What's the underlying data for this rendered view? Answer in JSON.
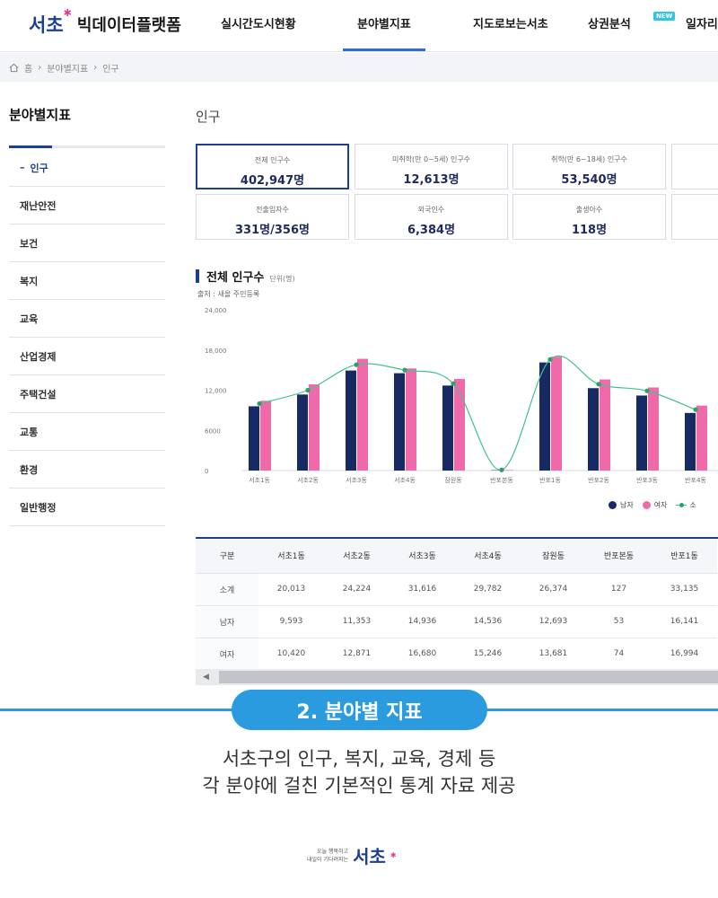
{
  "header": {
    "logo": "서초",
    "logo_sub": "빅데이터플랫폼",
    "nav": [
      {
        "label": "실시간도시현황"
      },
      {
        "label": "분야별지표"
      },
      {
        "label": "지도로보는서초"
      },
      {
        "label": "상권분석"
      },
      {
        "label": "일자리"
      }
    ],
    "new_badge": "NEW"
  },
  "breadcrumb": [
    "홈",
    "분야별지표",
    "인구"
  ],
  "sidebar": {
    "title": "분야별지표",
    "items": [
      {
        "label": "인구"
      },
      {
        "label": "재난안전"
      },
      {
        "label": "보건"
      },
      {
        "label": "복지"
      },
      {
        "label": "교육"
      },
      {
        "label": "산업경제"
      },
      {
        "label": "주택건설"
      },
      {
        "label": "교통"
      },
      {
        "label": "환경"
      },
      {
        "label": "일반행정"
      }
    ]
  },
  "main": {
    "title": "인구",
    "cards": [
      {
        "label": "전체 인구수",
        "value": "402,947명"
      },
      {
        "label": "미취학(만 0~5세) 인구수",
        "value": "12,613명"
      },
      {
        "label": "취학(만 6~18세) 인구수",
        "value": "53,540명"
      },
      {
        "label": "전출입자수",
        "value": "331명/356명"
      },
      {
        "label": "외국인수",
        "value": "6,384명"
      },
      {
        "label": "출생아수",
        "value": "118명"
      }
    ]
  },
  "chart": {
    "title": "전체 인구수",
    "unit": "단위(명)",
    "source": "출처 : 새올 주민등록",
    "legend": [
      "남자",
      "여자",
      "소"
    ],
    "colors": {
      "male": "#182a63",
      "female": "#f06aaa",
      "line": "#3fc38d",
      "line_dot": "#2e9f66"
    }
  },
  "chart_data": {
    "type": "bar",
    "categories": [
      "서초1동",
      "서초2동",
      "서초3동",
      "서초4동",
      "잠원동",
      "반포본동",
      "반포1동",
      "반포2동",
      "반포3동",
      "반포4동"
    ],
    "series": [
      {
        "name": "남자",
        "type": "bar",
        "values": [
          9593,
          11353,
          14936,
          14536,
          12693,
          53,
          16141,
          12300,
          11200,
          8600
        ]
      },
      {
        "name": "여자",
        "type": "bar",
        "values": [
          10420,
          12871,
          16680,
          15246,
          13681,
          74,
          16994,
          13600,
          12400,
          9700
        ]
      },
      {
        "name": "소",
        "type": "line",
        "values": [
          10000,
          12000,
          15800,
          15000,
          13000,
          100,
          16600,
          12900,
          11900,
          9100
        ]
      }
    ],
    "y_ticks": [
      "0",
      "6000",
      "12,000",
      "18,000",
      "24,000"
    ],
    "ylim": [
      0,
      24000
    ],
    "grid": false
  },
  "table": {
    "headers": [
      "구분",
      "서초1동",
      "서초2동",
      "서초3동",
      "서초4동",
      "잠원동",
      "반포본동",
      "반포1동"
    ],
    "rows": [
      [
        "소계",
        "20,013",
        "24,224",
        "31,616",
        "29,782",
        "26,374",
        "127",
        "33,135"
      ],
      [
        "남자",
        "9,593",
        "11,353",
        "14,936",
        "14,536",
        "12,693",
        "53",
        "16,141"
      ],
      [
        "여자",
        "10,420",
        "12,871",
        "16,680",
        "15,246",
        "13,681",
        "74",
        "16,994"
      ]
    ]
  },
  "caption": {
    "badge": "2. 분야별 지표",
    "line1": "서초구의 인구, 복지, 교육, 경제 등",
    "line2": "각 분야에 걸친 기본적인 통계 자료 제공"
  },
  "footer": {
    "line1": "오늘 행복하고",
    "line2": "내일이 기다려지는",
    "mark": "서초"
  }
}
